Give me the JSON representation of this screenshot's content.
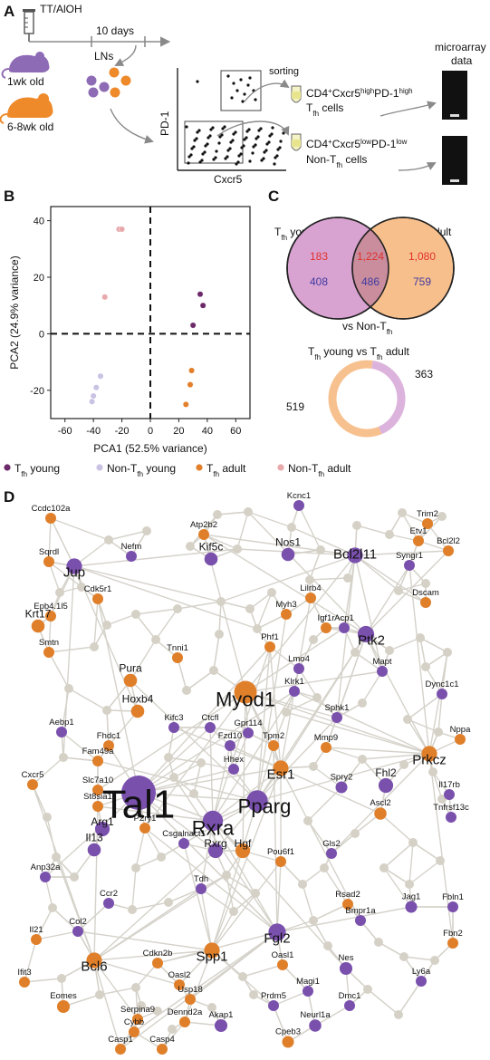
{
  "panels": {
    "a": "A",
    "b": "B",
    "c": "C",
    "d": "D"
  },
  "panel_a": {
    "immunization": "TT/AlOH",
    "interval": "10 days",
    "young_group": "1wk old",
    "adult_group": "6-8wk old",
    "lymph_nodes": "LNs",
    "sorting": "sorting",
    "y_axis": "PD-1",
    "x_axis": "Cxcr5",
    "microarray": "microarray\ndata",
    "tfh_gate": {
      "cd4": "CD4",
      "cxcr5": "Cxcr5",
      "sup1": "high",
      "pd1": "PD-1",
      "sup2": "high",
      "cell": "T",
      "sub": "fh",
      "rest": " cells"
    },
    "nontfh_gate": {
      "cd4": "CD4",
      "cxcr5": "Cxcr5",
      "sup1": "low",
      "pd1": "PD-1",
      "sup2": "low",
      "cell": "Non-T",
      "sub": "fh",
      "rest": " cells"
    },
    "colors": {
      "young": "#8e6bb5",
      "adult": "#ee8a2a"
    }
  },
  "chart_data": [
    {
      "type": "scatter",
      "xlabel": "PCA1 (52.5% variance)",
      "ylabel": "PCA2 (24.9% variance)",
      "xlim": [
        -70,
        70
      ],
      "ylim": [
        -30,
        45
      ],
      "xticks": [
        -60,
        -40,
        -20,
        0,
        20,
        40,
        60
      ],
      "yticks": [
        -20,
        0,
        20,
        40
      ],
      "reference_lines": {
        "x": 0,
        "y": 0
      },
      "series": [
        {
          "name": "T_fh young",
          "color": "#6d2a6a",
          "points": [
            [
              35,
              14
            ],
            [
              37,
              10
            ],
            [
              30,
              3
            ]
          ]
        },
        {
          "name": "Non-T_fh young",
          "color": "#c9c2e3",
          "points": [
            [
              -35,
              -15
            ],
            [
              -38,
              -19
            ],
            [
              -40,
              -22
            ],
            [
              -41,
              -24
            ]
          ]
        },
        {
          "name": "T_fh adult",
          "color": "#e27f2a",
          "points": [
            [
              29,
              -13
            ],
            [
              28,
              -18
            ],
            [
              25,
              -25
            ]
          ]
        },
        {
          "name": "Non-T_fh adult",
          "color": "#e8a9ac",
          "points": [
            [
              -22,
              37
            ],
            [
              -20,
              37
            ],
            [
              -32,
              13
            ]
          ]
        }
      ],
      "legend_position": "bottom"
    },
    {
      "type": "venn",
      "sets": [
        {
          "name": "T",
          "sub": "fh",
          "rest": " young",
          "color": "#d9a3d1"
        },
        {
          "name": "T",
          "sub": "fh",
          "rest": " adult",
          "color": "#f7bf8c"
        }
      ],
      "regions": {
        "young_only": {
          "up": 183,
          "down": 408
        },
        "shared": {
          "up": "1,224",
          "down": 486
        },
        "adult_only": {
          "up": "1,080",
          "down": 759
        }
      },
      "up_color": "#e0302b",
      "down_color": "#3f3aa0",
      "comparison": {
        "prefix": "vs Non-T",
        "sub": "fh"
      }
    },
    {
      "type": "pie",
      "title": {
        "p1": "T",
        "s1": "fh",
        "mid": " young vs T",
        "s2": "fh",
        "end": " adult"
      },
      "slices": [
        {
          "value": 519,
          "color": "#f7c18f"
        },
        {
          "value": 363,
          "color": "#dcb3dc"
        }
      ]
    }
  ],
  "network": {
    "colors": {
      "purple": "#7a50ad",
      "orange": "#e07f2a",
      "grey": "#d5d1c6",
      "edge": "#d5d2ca"
    },
    "nodes": [
      {
        "id": "Ccdc102a",
        "label": "Ccdc102a",
        "c": "orange",
        "s": 1
      },
      {
        "id": "Atp2b2",
        "label": "Atp2b2",
        "c": "orange",
        "s": 1
      },
      {
        "id": "Kcnc1",
        "label": "Kcnc1",
        "c": "purple",
        "s": 1
      },
      {
        "id": "Trim2",
        "label": "Trim2",
        "c": "orange",
        "s": 1
      },
      {
        "id": "Etv1",
        "label": "Etv1",
        "c": "orange",
        "s": 1
      },
      {
        "id": "Bcl2l2",
        "label": "Bcl2l2",
        "c": "orange",
        "s": 1
      },
      {
        "id": "Sqrdl",
        "label": "Sqrdl",
        "c": "orange",
        "s": 1
      },
      {
        "id": "Jup",
        "label": "Jup",
        "c": "purple",
        "s": 2
      },
      {
        "id": "Nefm",
        "label": "Nefm",
        "c": "purple",
        "s": 1
      },
      {
        "id": "Kif5c",
        "label": "Kif5c",
        "c": "purple",
        "s": 1.5
      },
      {
        "id": "Nos1",
        "label": "Nos1",
        "c": "purple",
        "s": 1.5
      },
      {
        "id": "Bcl2l11",
        "label": "Bcl2l11",
        "c": "purple",
        "s": 2
      },
      {
        "id": "Syngr1",
        "label": "Syngr1",
        "c": "purple",
        "s": 1
      },
      {
        "id": "Dscam",
        "label": "Dscam",
        "c": "orange",
        "s": 1
      },
      {
        "id": "Cdk5r1",
        "label": "Cdk5r1",
        "c": "orange",
        "s": 1
      },
      {
        "id": "Lilrb4",
        "label": "Lilrb4",
        "c": "orange",
        "s": 1
      },
      {
        "id": "Epb4.1l5",
        "label": "Epb4.1l5",
        "c": "orange",
        "s": 1
      },
      {
        "id": "Krt17",
        "label": "Krt17",
        "c": "orange",
        "s": 1.5
      },
      {
        "id": "Myh3",
        "label": "Myh3",
        "c": "orange",
        "s": 1
      },
      {
        "id": "Igf1r",
        "label": "Igf1r",
        "c": "orange",
        "s": 1
      },
      {
        "id": "Acp1",
        "label": "Acp1",
        "c": "purple",
        "s": 1
      },
      {
        "id": "Ptk2",
        "label": "Ptk2",
        "c": "purple",
        "s": 2.2
      },
      {
        "id": "Smtn",
        "label": "Smtn",
        "c": "orange",
        "s": 1
      },
      {
        "id": "Phf1",
        "label": "Phf1",
        "c": "orange",
        "s": 1
      },
      {
        "id": "Lmo4",
        "label": "Lmo4",
        "c": "purple",
        "s": 1
      },
      {
        "id": "Tnni1",
        "label": "Tnni1",
        "c": "orange",
        "s": 1
      },
      {
        "id": "Mapt",
        "label": "Mapt",
        "c": "purple",
        "s": 1
      },
      {
        "id": "Pura",
        "label": "Pura",
        "c": "orange",
        "s": 1.5
      },
      {
        "id": "Myod1",
        "label": "Myod1",
        "c": "orange",
        "s": 3.5
      },
      {
        "id": "Klrk1",
        "label": "Klrk1",
        "c": "purple",
        "s": 1
      },
      {
        "id": "Dync1c1",
        "label": "Dync1c1",
        "c": "purple",
        "s": 1
      },
      {
        "id": "Hoxb4",
        "label": "Hoxb4",
        "c": "orange",
        "s": 1.5
      },
      {
        "id": "Sphk1",
        "label": "Sphk1",
        "c": "purple",
        "s": 1
      },
      {
        "id": "Aebp1",
        "label": "Aebp1",
        "c": "purple",
        "s": 1
      },
      {
        "id": "Kifc3",
        "label": "Kifc3",
        "c": "purple",
        "s": 1
      },
      {
        "id": "Ctcfl",
        "label": "Ctcfl",
        "c": "purple",
        "s": 1
      },
      {
        "id": "Gpr114",
        "label": "Gpr114",
        "c": "purple",
        "s": 1
      },
      {
        "id": "Tpm2",
        "label": "Tpm2",
        "c": "orange",
        "s": 1
      },
      {
        "id": "Mmp9",
        "label": "Mmp9",
        "c": "orange",
        "s": 1
      },
      {
        "id": "Fhdc1",
        "label": "Fhdc1",
        "c": "orange",
        "s": 1
      },
      {
        "id": "Fzd10",
        "label": "Fzd10",
        "c": "purple",
        "s": 1
      },
      {
        "id": "Nppa",
        "label": "Nppa",
        "c": "orange",
        "s": 1
      },
      {
        "id": "Fam49a",
        "label": "Fam49a",
        "c": "orange",
        "s": 1
      },
      {
        "id": "Prkcz",
        "label": "Prkcz",
        "c": "orange",
        "s": 2
      },
      {
        "id": "Esr1",
        "label": "Esr1",
        "c": "orange",
        "s": 2
      },
      {
        "id": "Hhex",
        "label": "Hhex",
        "c": "purple",
        "s": 1
      },
      {
        "id": "Cxcr5",
        "label": "Cxcr5",
        "c": "orange",
        "s": 1
      },
      {
        "id": "Tal1",
        "label": "Tal1",
        "c": "purple",
        "s": 6
      },
      {
        "id": "Fhl2",
        "label": "Fhl2",
        "c": "purple",
        "s": 1.8
      },
      {
        "id": "Slc7a10",
        "label": "Slc7a10",
        "c": "orange",
        "s": 1
      },
      {
        "id": "Spry2",
        "label": "Spry2",
        "c": "purple",
        "s": 1.2
      },
      {
        "id": "Pparg",
        "label": "Pparg",
        "c": "purple",
        "s": 3.2
      },
      {
        "id": "Rxra",
        "label": "Rxra",
        "c": "purple",
        "s": 3
      },
      {
        "id": "Il17rb",
        "label": "Il17rb",
        "c": "purple",
        "s": 1
      },
      {
        "id": "St8sia1",
        "label": "St8sia1",
        "c": "orange",
        "s": 1
      },
      {
        "id": "P2ry1",
        "label": "P2ry1",
        "c": "orange",
        "s": 1
      },
      {
        "id": "Csgalnact1",
        "label": "Csgalnact1",
        "c": "purple",
        "s": 1
      },
      {
        "id": "Ascl2",
        "label": "Ascl2",
        "c": "orange",
        "s": 1.3
      },
      {
        "id": "Tnfrsf13c",
        "label": "Tnfrsf13c",
        "c": "purple",
        "s": 1
      },
      {
        "id": "Arg1",
        "label": "Arg1",
        "c": "purple",
        "s": 1.8
      },
      {
        "id": "Rxrg",
        "label": "Rxrg",
        "c": "purple",
        "s": 1.8
      },
      {
        "id": "Hgf",
        "label": "Hgf",
        "c": "orange",
        "s": 1.8
      },
      {
        "id": "Pou6f1",
        "label": "Pou6f1",
        "c": "orange",
        "s": 1
      },
      {
        "id": "Gls2",
        "label": "Gls2",
        "c": "purple",
        "s": 1
      },
      {
        "id": "Il13",
        "label": "Il13",
        "c": "purple",
        "s": 1.5
      },
      {
        "id": "Anp32a",
        "label": "Anp32a",
        "c": "purple",
        "s": 1
      },
      {
        "id": "Tdh",
        "label": "Tdh",
        "c": "purple",
        "s": 1
      },
      {
        "id": "Ccr2",
        "label": "Ccr2",
        "c": "purple",
        "s": 1
      },
      {
        "id": "Rsad2",
        "label": "Rsad2",
        "c": "orange",
        "s": 1
      },
      {
        "id": "Jag1",
        "label": "Jag1",
        "c": "purple",
        "s": 1.2
      },
      {
        "id": "Fbln1",
        "label": "Fbln1",
        "c": "purple",
        "s": 1
      },
      {
        "id": "Bmpr1a",
        "label": "Bmpr1a",
        "c": "purple",
        "s": 1
      },
      {
        "id": "Col2",
        "label": "Col2",
        "c": "purple",
        "s": 1
      },
      {
        "id": "Fgl2",
        "label": "Fgl2",
        "c": "purple",
        "s": 2.4
      },
      {
        "id": "Il21",
        "label": "Il21",
        "c": "orange",
        "s": 1
      },
      {
        "id": "Bcl6",
        "label": "Bcl6",
        "c": "orange",
        "s": 2
      },
      {
        "id": "Spp1",
        "label": "Spp1",
        "c": "orange",
        "s": 2
      },
      {
        "id": "Cdkn2b",
        "label": "Cdkn2b",
        "c": "orange",
        "s": 1
      },
      {
        "id": "Oasl1",
        "label": "Oasl1",
        "c": "orange",
        "s": 1
      },
      {
        "id": "Fbn2",
        "label": "Fbn2",
        "c": "orange",
        "s": 1
      },
      {
        "id": "Nes",
        "label": "Nes",
        "c": "purple",
        "s": 1.4
      },
      {
        "id": "Ly6a",
        "label": "Ly6a",
        "c": "purple",
        "s": 1
      },
      {
        "id": "Ifit3",
        "label": "Ifit3",
        "c": "orange",
        "s": 1
      },
      {
        "id": "Oasl2",
        "label": "Oasl2",
        "c": "orange",
        "s": 1
      },
      {
        "id": "Usp18",
        "label": "Usp18",
        "c": "orange",
        "s": 1
      },
      {
        "id": "Magi1",
        "label": "Magi1",
        "c": "purple",
        "s": 1
      },
      {
        "id": "Eomes",
        "label": "Eomes",
        "c": "orange",
        "s": 1.4
      },
      {
        "id": "Prdm5",
        "label": "Prdm5",
        "c": "purple",
        "s": 1
      },
      {
        "id": "Dmc1",
        "label": "Dmc1",
        "c": "purple",
        "s": 1
      },
      {
        "id": "Serpina9",
        "label": "Serpina9",
        "c": "orange",
        "s": 1
      },
      {
        "id": "Cybb",
        "label": "Cybb",
        "c": "orange",
        "s": 1
      },
      {
        "id": "Dennd2a",
        "label": "Dennd2a",
        "c": "orange",
        "s": 1
      },
      {
        "id": "Akap1",
        "label": "Akap1",
        "c": "purple",
        "s": 1.4
      },
      {
        "id": "Neurl1a",
        "label": "Neurl1a",
        "c": "purple",
        "s": 1.3
      },
      {
        "id": "Cpeb3",
        "label": "Cpeb3",
        "c": "orange",
        "s": 1.2
      },
      {
        "id": "Casp1",
        "label": "Casp1",
        "c": "orange",
        "s": 1
      },
      {
        "id": "Casp4",
        "label": "Casp4",
        "c": "orange",
        "s": 1
      }
    ]
  }
}
